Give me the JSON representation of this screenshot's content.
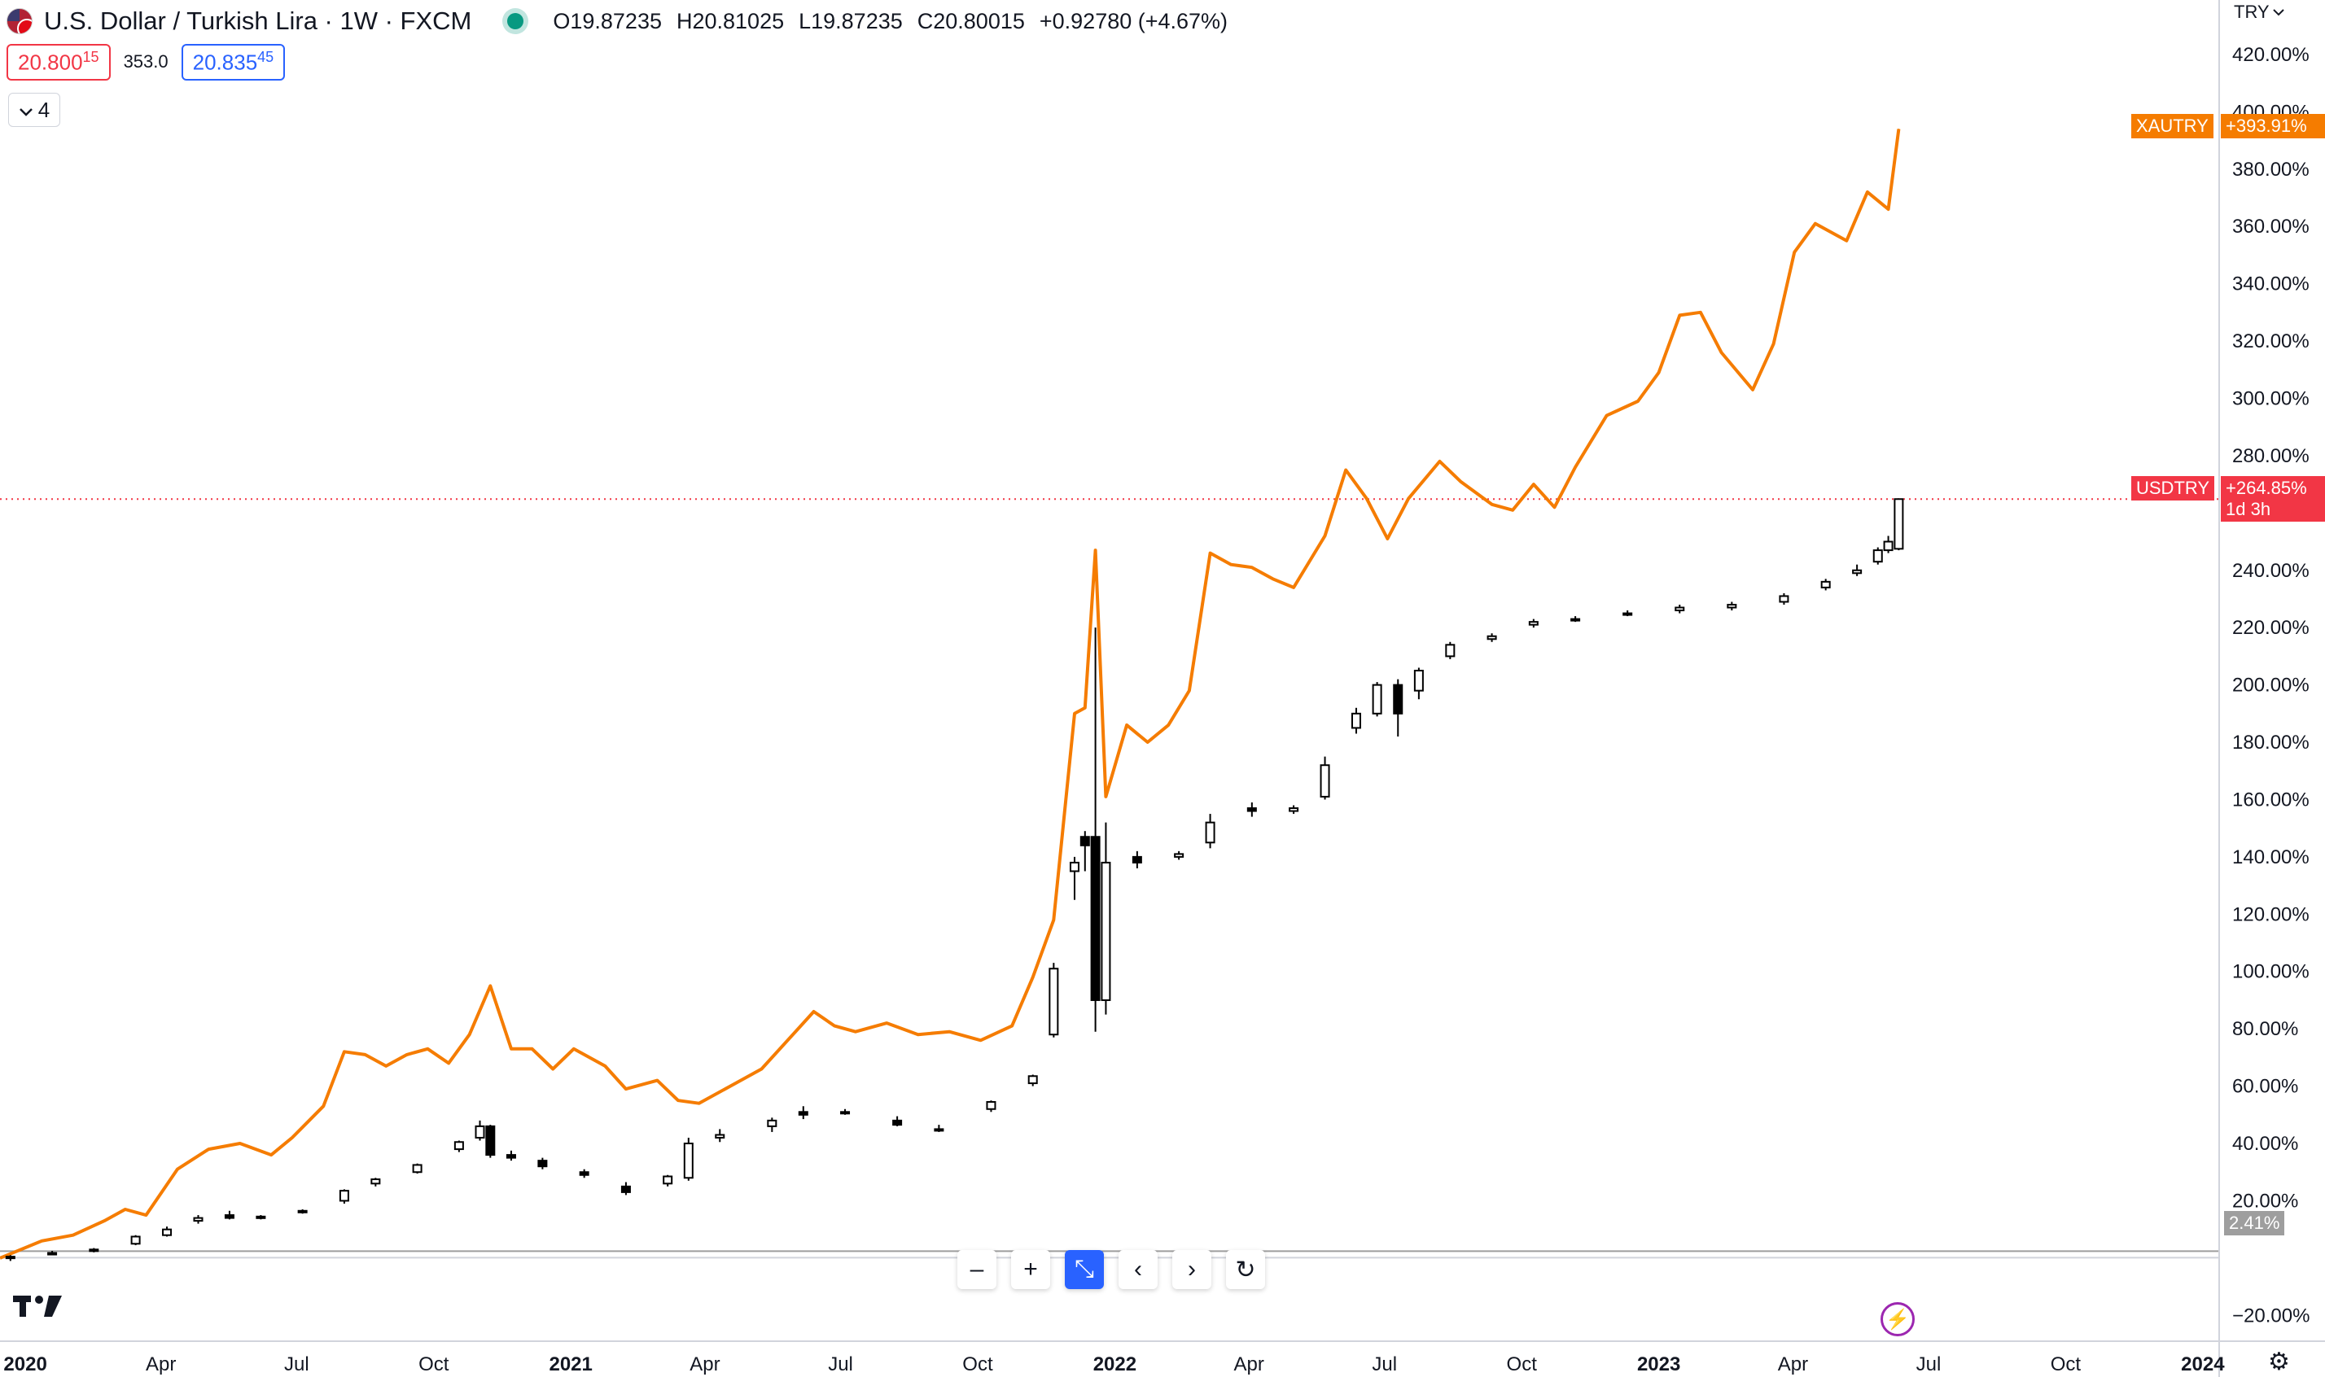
{
  "header": {
    "symbol_title": "U.S. Dollar / Turkish Lira · 1W · FXCM",
    "ohlc": {
      "open": "O19.87235",
      "high": "H20.81025",
      "low": "L19.87235",
      "close": "C20.80015",
      "change": "+0.92780 (+4.67%)"
    },
    "sell_price_main": "20.800",
    "sell_price_sup": "15",
    "spread": "353.0",
    "buy_price_main": "20.835",
    "buy_price_sup": "45",
    "indicator_count": "4"
  },
  "currency_label": "TRY",
  "toolbar": {
    "zoom_out": "–",
    "zoom_in": "+",
    "reset_scale": "⤡",
    "scroll_left": "‹",
    "scroll_right": "›",
    "reset_chart": "↻"
  },
  "icons": [
    "us-turkey-flag-icon",
    "market-open-dot-icon",
    "chevron-down-icon",
    "tradingview-logo-icon",
    "lightning-icon",
    "gear-icon"
  ],
  "colors": {
    "xautry_line": "#f57c00",
    "candle_outline": "#000000",
    "current_price_line": "#f23645",
    "baseline_label_bg": "#9e9e9e"
  },
  "price_tags": {
    "xautry_label": "XAUTRY",
    "xautry_value": "+393.91%",
    "usdtry_label": "USDTRY",
    "usdtry_value": "+264.85%",
    "usdtry_countdown": "1d 3h",
    "baseline_value": "2.41%"
  },
  "chart_data": {
    "type": "line",
    "y_axis_unit": "percent change",
    "y_ticks": [
      "420.00%",
      "400.00%",
      "380.00%",
      "360.00%",
      "340.00%",
      "320.00%",
      "300.00%",
      "280.00%",
      "240.00%",
      "220.00%",
      "200.00%",
      "180.00%",
      "160.00%",
      "140.00%",
      "120.00%",
      "100.00%",
      "80.00%",
      "60.00%",
      "40.00%",
      "20.00%",
      "−20.00%"
    ],
    "y_tick_values": [
      420,
      400,
      380,
      360,
      340,
      320,
      300,
      280,
      240,
      220,
      200,
      180,
      160,
      140,
      120,
      100,
      80,
      60,
      40,
      20,
      -20
    ],
    "ylim": [
      -29,
      439
    ],
    "x_ticks": [
      {
        "label": "2020",
        "x": "2020-01-01",
        "bold": true
      },
      {
        "label": "Apr",
        "x": "2020-04-01"
      },
      {
        "label": "Jul",
        "x": "2020-07-01"
      },
      {
        "label": "Oct",
        "x": "2020-10-01"
      },
      {
        "label": "2021",
        "x": "2021-01-01",
        "bold": true
      },
      {
        "label": "Apr",
        "x": "2021-04-01"
      },
      {
        "label": "Jul",
        "x": "2021-07-01"
      },
      {
        "label": "Oct",
        "x": "2021-10-01"
      },
      {
        "label": "2022",
        "x": "2022-01-01",
        "bold": true
      },
      {
        "label": "Apr",
        "x": "2022-04-01"
      },
      {
        "label": "Jul",
        "x": "2022-07-01"
      },
      {
        "label": "Oct",
        "x": "2022-10-01"
      },
      {
        "label": "2023",
        "x": "2023-01-01",
        "bold": true
      },
      {
        "label": "Apr",
        "x": "2023-04-01"
      },
      {
        "label": "Jul",
        "x": "2023-07-01"
      },
      {
        "label": "Oct",
        "x": "2023-10-01"
      },
      {
        "label": "2024",
        "x": "2024-01-01",
        "bold": true
      }
    ],
    "xlim": [
      "2019-12-15",
      "2024-01-12"
    ],
    "series": [
      {
        "name": "XAUTRY",
        "type": "line",
        "points": [
          [
            "2019-12-15",
            0
          ],
          [
            "2020-01-12",
            6
          ],
          [
            "2020-02-02",
            8
          ],
          [
            "2020-02-23",
            13
          ],
          [
            "2020-03-08",
            17
          ],
          [
            "2020-03-22",
            15
          ],
          [
            "2020-04-12",
            31
          ],
          [
            "2020-05-03",
            38
          ],
          [
            "2020-05-24",
            40
          ],
          [
            "2020-06-14",
            36
          ],
          [
            "2020-06-28",
            42
          ],
          [
            "2020-07-19",
            53
          ],
          [
            "2020-08-02",
            72
          ],
          [
            "2020-08-16",
            71
          ],
          [
            "2020-08-30",
            67
          ],
          [
            "2020-09-13",
            71
          ],
          [
            "2020-09-27",
            73
          ],
          [
            "2020-10-11",
            68
          ],
          [
            "2020-10-25",
            78
          ],
          [
            "2020-11-08",
            95
          ],
          [
            "2020-11-22",
            73
          ],
          [
            "2020-12-06",
            73
          ],
          [
            "2020-12-20",
            66
          ],
          [
            "2021-01-03",
            73
          ],
          [
            "2021-01-24",
            67
          ],
          [
            "2021-02-07",
            59
          ],
          [
            "2021-02-28",
            62
          ],
          [
            "2021-03-14",
            55
          ],
          [
            "2021-03-28",
            54
          ],
          [
            "2021-04-18",
            60
          ],
          [
            "2021-05-09",
            66
          ],
          [
            "2021-05-30",
            78
          ],
          [
            "2021-06-13",
            86
          ],
          [
            "2021-06-27",
            81
          ],
          [
            "2021-07-11",
            79
          ],
          [
            "2021-08-01",
            82
          ],
          [
            "2021-08-22",
            78
          ],
          [
            "2021-09-12",
            79
          ],
          [
            "2021-10-03",
            76
          ],
          [
            "2021-10-24",
            81
          ],
          [
            "2021-11-07",
            98
          ],
          [
            "2021-11-21",
            118
          ],
          [
            "2021-12-05",
            190
          ],
          [
            "2021-12-12",
            192
          ],
          [
            "2021-12-19",
            247
          ],
          [
            "2021-12-26",
            161
          ],
          [
            "2022-01-09",
            186
          ],
          [
            "2022-01-23",
            180
          ],
          [
            "2022-02-06",
            186
          ],
          [
            "2022-02-20",
            198
          ],
          [
            "2022-03-06",
            246
          ],
          [
            "2022-03-20",
            242
          ],
          [
            "2022-04-03",
            241
          ],
          [
            "2022-04-17",
            237
          ],
          [
            "2022-05-01",
            234
          ],
          [
            "2022-05-22",
            252
          ],
          [
            "2022-06-05",
            275
          ],
          [
            "2022-06-19",
            265
          ],
          [
            "2022-07-03",
            251
          ],
          [
            "2022-07-17",
            265
          ],
          [
            "2022-08-07",
            278
          ],
          [
            "2022-08-21",
            271
          ],
          [
            "2022-09-11",
            263
          ],
          [
            "2022-09-25",
            261
          ],
          [
            "2022-10-09",
            270
          ],
          [
            "2022-10-23",
            262
          ],
          [
            "2022-11-06",
            276
          ],
          [
            "2022-11-27",
            294
          ],
          [
            "2022-12-18",
            299
          ],
          [
            "2023-01-01",
            309
          ],
          [
            "2023-01-15",
            329
          ],
          [
            "2023-01-29",
            330
          ],
          [
            "2023-02-12",
            316
          ],
          [
            "2023-03-05",
            303
          ],
          [
            "2023-03-19",
            319
          ],
          [
            "2023-04-02",
            351
          ],
          [
            "2023-04-16",
            361
          ],
          [
            "2023-05-07",
            355
          ],
          [
            "2023-05-21",
            372
          ],
          [
            "2023-06-04",
            366
          ],
          [
            "2023-06-11",
            394
          ]
        ]
      },
      {
        "name": "USDTRY",
        "type": "candlestick",
        "fields": [
          "date",
          "open",
          "high",
          "low",
          "close"
        ],
        "candles": [
          [
            "2019-12-22",
            0,
            1,
            -1,
            0.5
          ],
          [
            "2020-01-19",
            1.5,
            2.5,
            1,
            1.8
          ],
          [
            "2020-02-16",
            2.5,
            3.5,
            2,
            3
          ],
          [
            "2020-03-15",
            5,
            8,
            4.5,
            7.5
          ],
          [
            "2020-04-05",
            8,
            11,
            7.5,
            10
          ],
          [
            "2020-04-26",
            13,
            15,
            12,
            14
          ],
          [
            "2020-05-17",
            15,
            16.5,
            13.5,
            14
          ],
          [
            "2020-06-07",
            14,
            15,
            13.5,
            14.5
          ],
          [
            "2020-07-05",
            16,
            17,
            15.5,
            16.5
          ],
          [
            "2020-08-02",
            20,
            24,
            19,
            23.5
          ],
          [
            "2020-08-23",
            26,
            28,
            25,
            27.5
          ],
          [
            "2020-09-20",
            30,
            33,
            29.5,
            32.5
          ],
          [
            "2020-10-18",
            38,
            41,
            37,
            40.5
          ],
          [
            "2020-11-01",
            42,
            48,
            41,
            46
          ],
          [
            "2020-11-08",
            46,
            46.5,
            35,
            36
          ],
          [
            "2020-11-22",
            36,
            37.5,
            34,
            35
          ],
          [
            "2020-12-13",
            34,
            35,
            31,
            32
          ],
          [
            "2021-01-10",
            30,
            31,
            28,
            29
          ],
          [
            "2021-02-07",
            25,
            26.5,
            22,
            23
          ],
          [
            "2021-03-07",
            26,
            29,
            25,
            28.5
          ],
          [
            "2021-03-21",
            28,
            42,
            27,
            40
          ],
          [
            "2021-04-11",
            42,
            45,
            40.5,
            43
          ],
          [
            "2021-05-16",
            46,
            49,
            44,
            48
          ],
          [
            "2021-06-06",
            51,
            53,
            48.5,
            50
          ],
          [
            "2021-07-04",
            51,
            52,
            50,
            50.5
          ],
          [
            "2021-08-08",
            48,
            49.5,
            46,
            46.5
          ],
          [
            "2021-09-05",
            45,
            46.5,
            44,
            45
          ],
          [
            "2021-10-10",
            52,
            55,
            51,
            54.5
          ],
          [
            "2021-11-07",
            61,
            64,
            60,
            63.5
          ],
          [
            "2021-11-21",
            78,
            103,
            77,
            101
          ],
          [
            "2021-12-05",
            135,
            140,
            125,
            138
          ],
          [
            "2021-12-12",
            147,
            149,
            135,
            144
          ],
          [
            "2021-12-19",
            147,
            220,
            79,
            90
          ],
          [
            "2021-12-26",
            90,
            152,
            85,
            138
          ],
          [
            "2022-01-16",
            140,
            142,
            136,
            138
          ],
          [
            "2022-02-13",
            140,
            142,
            139,
            141
          ],
          [
            "2022-03-06",
            145,
            155,
            143,
            152
          ],
          [
            "2022-04-03",
            157,
            159,
            154,
            156
          ],
          [
            "2022-05-01",
            156,
            158,
            155,
            157
          ],
          [
            "2022-05-22",
            161,
            175,
            160,
            172
          ],
          [
            "2022-06-12",
            185,
            192,
            183,
            190
          ],
          [
            "2022-06-26",
            190,
            201,
            189,
            200
          ],
          [
            "2022-07-10",
            200,
            202,
            182,
            190
          ],
          [
            "2022-07-24",
            198,
            206,
            195,
            205
          ],
          [
            "2022-08-14",
            210,
            215,
            209,
            214
          ],
          [
            "2022-09-11",
            216,
            218,
            215,
            217
          ],
          [
            "2022-10-09",
            221,
            223,
            220,
            222
          ],
          [
            "2022-11-06",
            223,
            224,
            222,
            223
          ],
          [
            "2022-12-11",
            225,
            226,
            224,
            225
          ],
          [
            "2023-01-15",
            226,
            228,
            225,
            227
          ],
          [
            "2023-02-19",
            227,
            229,
            226,
            228
          ],
          [
            "2023-03-26",
            229,
            232,
            228,
            231
          ],
          [
            "2023-04-23",
            234,
            237,
            233,
            236
          ],
          [
            "2023-05-14",
            239,
            242,
            238,
            240
          ],
          [
            "2023-05-28",
            243,
            248,
            242,
            247
          ],
          [
            "2023-06-04",
            247,
            252,
            246,
            250
          ],
          [
            "2023-06-11",
            247.5,
            265,
            247,
            264.85
          ]
        ]
      }
    ],
    "baseline": 2.41,
    "current_price_line": 264.85,
    "grid": false,
    "legend": "right-edge price labels"
  }
}
